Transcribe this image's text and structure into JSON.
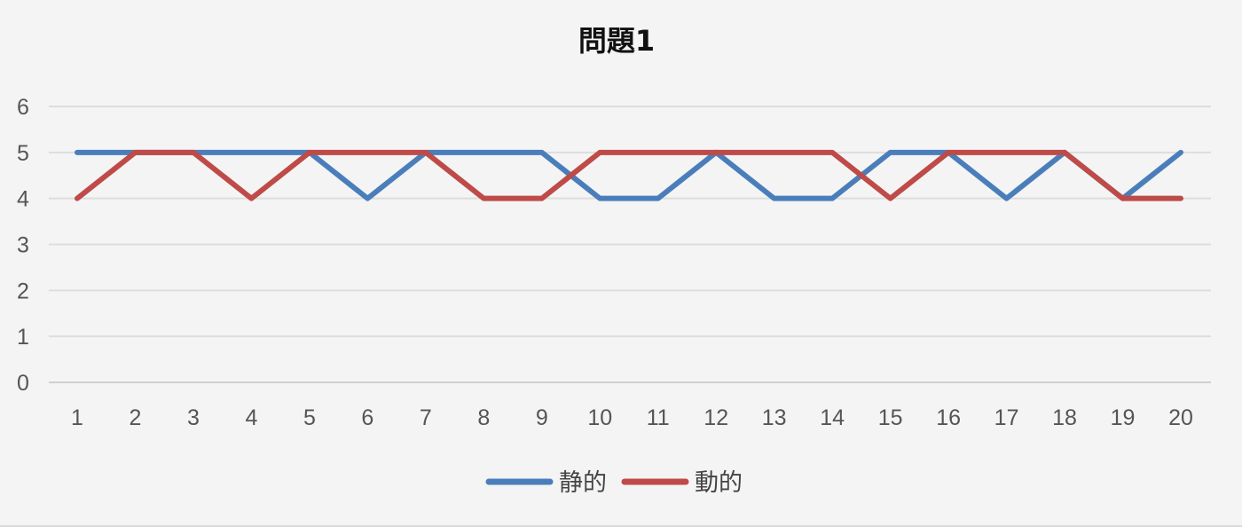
{
  "chart_data": {
    "type": "line",
    "title": "問題1",
    "xlabel": "",
    "ylabel": "",
    "categories": [
      "1",
      "2",
      "3",
      "4",
      "5",
      "6",
      "7",
      "8",
      "9",
      "10",
      "11",
      "12",
      "13",
      "14",
      "15",
      "16",
      "17",
      "18",
      "19",
      "20"
    ],
    "ylim": [
      0,
      6
    ],
    "yticks": [
      "0",
      "1",
      "2",
      "3",
      "4",
      "5",
      "6"
    ],
    "grid": true,
    "legend_position": "bottom",
    "series": [
      {
        "name": "静的",
        "color": "#4a7ebb",
        "values": [
          5,
          5,
          5,
          5,
          5,
          4,
          5,
          5,
          5,
          4,
          4,
          5,
          4,
          4,
          5,
          5,
          4,
          5,
          4,
          5
        ]
      },
      {
        "name": "動的",
        "color": "#be4b48",
        "values": [
          4,
          5,
          5,
          4,
          5,
          5,
          5,
          4,
          4,
          5,
          5,
          5,
          5,
          5,
          4,
          5,
          5,
          5,
          4,
          4
        ]
      }
    ]
  }
}
